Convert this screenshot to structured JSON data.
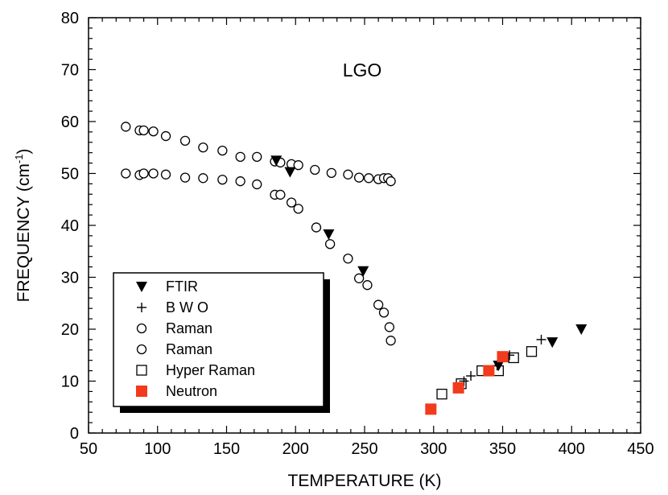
{
  "chart_data": {
    "type": "scatter",
    "title": "LGO",
    "xlabel": "TEMPERATURE (K)",
    "ylabel_main": "FREQUENCY (cm",
    "ylabel_sup": "-1",
    "ylabel_close": ")",
    "xlim": [
      50,
      450
    ],
    "ylim": [
      0,
      80
    ],
    "xticks": [
      50,
      100,
      150,
      200,
      250,
      300,
      350,
      400,
      450
    ],
    "yticks": [
      0,
      10,
      20,
      30,
      40,
      50,
      60,
      70,
      80
    ],
    "legend_placement": "lower-left",
    "series": [
      {
        "name": "FTIR",
        "marker": "triangle-down",
        "color": "#000000",
        "points": [
          [
            186,
            52.5
          ],
          [
            196,
            50.3
          ],
          [
            224,
            38.3
          ],
          [
            249,
            31.2
          ],
          [
            347,
            13.0
          ],
          [
            386,
            17.5
          ],
          [
            407,
            20.0
          ]
        ]
      },
      {
        "name": "B W O",
        "marker": "plus",
        "color": "#000000",
        "points": [
          [
            322,
            10.0
          ],
          [
            327,
            11.0
          ],
          [
            346,
            13.0
          ],
          [
            355,
            15.0
          ],
          [
            378,
            18.0
          ]
        ]
      },
      {
        "name": "Raman",
        "marker": "circle-open",
        "color": "#000000",
        "points": [
          [
            77,
            59.0
          ],
          [
            87,
            58.3
          ],
          [
            90,
            58.3
          ],
          [
            97,
            58.1
          ],
          [
            106,
            57.2
          ],
          [
            120,
            56.3
          ],
          [
            133,
            55.0
          ],
          [
            147,
            54.4
          ],
          [
            160,
            53.2
          ],
          [
            172,
            53.2
          ],
          [
            185,
            52.3
          ],
          [
            189,
            52.1
          ],
          [
            197,
            51.8
          ],
          [
            202,
            51.6
          ],
          [
            214,
            50.7
          ],
          [
            226,
            50.1
          ],
          [
            238,
            49.8
          ],
          [
            246,
            49.2
          ],
          [
            253,
            49.1
          ],
          [
            260,
            48.9
          ],
          [
            264,
            49.1
          ],
          [
            267,
            49.1
          ],
          [
            269,
            48.5
          ]
        ]
      },
      {
        "name": "Raman",
        "marker": "circle-open",
        "color": "#000000",
        "points": [
          [
            77,
            50.0
          ],
          [
            87,
            49.7
          ],
          [
            90,
            50.0
          ],
          [
            97,
            50.0
          ],
          [
            106,
            49.8
          ],
          [
            120,
            49.2
          ],
          [
            133,
            49.1
          ],
          [
            147,
            48.8
          ],
          [
            160,
            48.5
          ],
          [
            172,
            47.9
          ],
          [
            185,
            45.9
          ],
          [
            189,
            45.9
          ],
          [
            197,
            44.4
          ],
          [
            202,
            43.2
          ],
          [
            215,
            39.6
          ],
          [
            225,
            36.4
          ],
          [
            238,
            33.6
          ],
          [
            246,
            29.8
          ],
          [
            252,
            28.5
          ],
          [
            260,
            24.7
          ],
          [
            264,
            23.2
          ],
          [
            268,
            20.4
          ],
          [
            269,
            17.8
          ]
        ]
      },
      {
        "name": "Hyper Raman",
        "marker": "square-open",
        "color": "#000000",
        "points": [
          [
            306,
            7.5
          ],
          [
            320,
            9.5
          ],
          [
            335,
            12.0
          ],
          [
            347,
            12.0
          ],
          [
            358,
            14.5
          ],
          [
            371,
            15.7
          ]
        ]
      },
      {
        "name": "Neutron",
        "marker": "square-filled",
        "color": "#f23a1c",
        "points": [
          [
            298,
            4.6
          ],
          [
            318,
            8.7
          ],
          [
            340,
            12.0
          ],
          [
            350,
            14.7
          ]
        ]
      }
    ]
  }
}
